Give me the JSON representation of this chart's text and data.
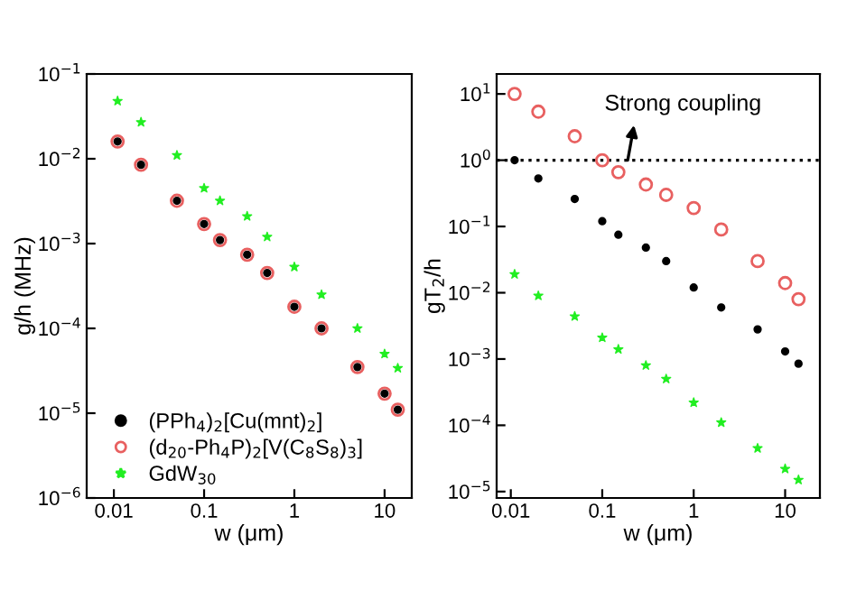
{
  "chart_data": [
    {
      "type": "scatter",
      "xlabel": "w (μm)",
      "ylabel": "g/h (MHz)",
      "log": "xy",
      "legend": "bottom left",
      "grid": false,
      "xlim": [
        0.005,
        20
      ],
      "xticks": [
        0.01,
        0.1,
        1,
        10
      ],
      "ylim": [
        1e-06,
        0.1
      ],
      "yticks": [
        {
          "value": 1e-06,
          "label": "10$^{−6}$"
        },
        {
          "value": 1e-05,
          "label": "10$^{−5}$"
        },
        {
          "value": 0.0001,
          "label": "10$^{−4}$"
        },
        {
          "value": 0.001,
          "label": "10$^{−3}$"
        },
        {
          "value": 0.01,
          "label": "10$^{−2}$"
        },
        {
          "value": 0.1,
          "label": "10$^{−1}$"
        }
      ],
      "x": [
        0.011,
        0.02,
        0.05,
        0.1,
        0.15,
        0.3,
        0.5,
        1,
        2,
        5,
        10,
        14
      ],
      "series": [
        {
          "name": "(PPh$_{4}$)$_{2}$[Cu(mnt)$_{2}$]",
          "color": "#000000",
          "marker": "circle",
          "values": [
            0.016,
            0.0085,
            0.0032,
            0.0017,
            0.0011,
            0.00074,
            0.00045,
            0.00018,
            0.0001,
            3.5e-05,
            1.7e-05,
            1.1e-05
          ]
        },
        {
          "name": "(d$_{20}$-Ph$_{4}$P)$_{2}$[V(C$_{8}$S$_{8}$)$_{3}$]",
          "color": "#e86060",
          "marker": "circle",
          "values": [
            0.016,
            0.0085,
            0.0032,
            0.0017,
            0.0011,
            0.00074,
            0.00045,
            0.00018,
            0.0001,
            3.5e-05,
            1.7e-05,
            1.1e-05
          ]
        },
        {
          "name": "GdW$_{30}$",
          "color": "#22ee22",
          "marker": "star",
          "values": [
            0.048,
            0.027,
            0.011,
            0.0045,
            0.0032,
            0.0021,
            0.0012,
            0.00053,
            0.00025,
            0.0001,
            5e-05,
            3.4e-05
          ]
        }
      ]
    },
    {
      "type": "scatter",
      "xlabel": "w (μm)",
      "ylabel": "gT$_{2}$/h",
      "log": "xy",
      "grid": false,
      "xlim": [
        0.007,
        24
      ],
      "xticks": [
        0.01,
        0.1,
        1,
        10
      ],
      "ylim": [
        8e-06,
        20
      ],
      "yticks": [
        {
          "value": 1e-05,
          "label": "10$^{−5}$"
        },
        {
          "value": 0.0001,
          "label": "10$^{−4}$"
        },
        {
          "value": 0.001,
          "label": "10$^{−3}$"
        },
        {
          "value": 0.01,
          "label": "10$^{−2}$"
        },
        {
          "value": 0.1,
          "label": "10$^{−1}$"
        },
        {
          "value": 1,
          "label": "10$^{0}$"
        },
        {
          "value": 10,
          "label": "10$^{1}$"
        }
      ],
      "ref_lines": [
        {
          "axis": "y",
          "value": 1,
          "color": "#000000",
          "line_style": "dotted"
        }
      ],
      "annotations": [
        {
          "text": "Strong coupling",
          "x": 0.19,
          "y": 1
        }
      ],
      "x": [
        0.011,
        0.02,
        0.05,
        0.1,
        0.15,
        0.3,
        0.5,
        1,
        2,
        5,
        10,
        14
      ],
      "series": [
        {
          "color": "#000000",
          "marker": "circle",
          "values": [
            1.0,
            0.53,
            0.26,
            0.12,
            0.075,
            0.048,
            0.03,
            0.012,
            0.006,
            0.0028,
            0.0013,
            0.00085
          ]
        },
        {
          "color": "#e86060",
          "marker": "circle",
          "values": [
            10,
            5.4,
            2.3,
            1.0,
            0.66,
            0.43,
            0.3,
            0.19,
            0.09,
            0.03,
            0.014,
            0.008
          ]
        },
        {
          "color": "#22ee22",
          "marker": "star",
          "values": [
            0.019,
            0.009,
            0.0044,
            0.0021,
            0.0014,
            0.0008,
            0.0005,
            0.00022,
            0.00011,
            4.5e-05,
            2.2e-05,
            1.5e-05
          ]
        }
      ]
    }
  ]
}
